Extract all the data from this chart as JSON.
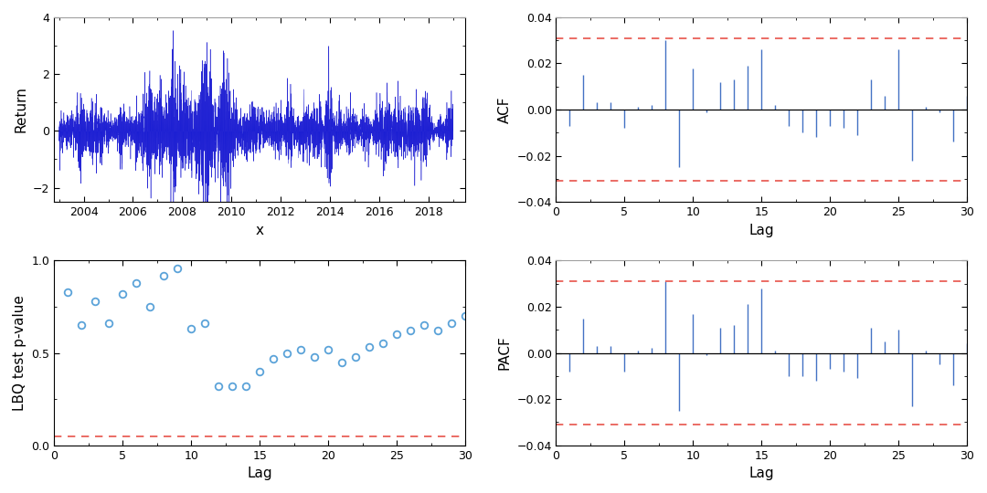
{
  "return_ylim": [
    -2.5,
    4
  ],
  "return_yticks": [
    -2,
    0,
    2,
    4
  ],
  "return_xticks": [
    2004,
    2006,
    2008,
    2010,
    2012,
    2014,
    2016,
    2018
  ],
  "return_xlabel": "x",
  "return_ylabel": "Return",
  "return_color_dark": "#0000CD",
  "return_color_light": "#6495ED",
  "acf_lags": [
    1,
    2,
    3,
    4,
    5,
    6,
    7,
    8,
    9,
    10,
    11,
    12,
    13,
    14,
    15,
    16,
    17,
    18,
    19,
    20,
    21,
    22,
    23,
    24,
    25,
    26,
    27,
    28,
    29,
    30
  ],
  "acf_values": [
    -0.007,
    0.015,
    0.003,
    0.003,
    -0.008,
    0.001,
    0.002,
    0.03,
    -0.025,
    0.018,
    -0.001,
    0.012,
    0.013,
    0.019,
    0.026,
    0.002,
    -0.007,
    -0.01,
    -0.012,
    -0.007,
    -0.008,
    -0.011,
    0.013,
    0.006,
    0.026,
    -0.022,
    0.001,
    -0.001,
    -0.014,
    0.006
  ],
  "acf_ylim": [
    -0.04,
    0.04
  ],
  "acf_yticks": [
    -0.04,
    -0.02,
    0,
    0.02,
    0.04
  ],
  "acf_conf": 0.031,
  "acf_conf_neg": -0.031,
  "acf_xlabel": "Lag",
  "acf_ylabel": "ACF",
  "acf_xlim": [
    0,
    30
  ],
  "pacf_lags": [
    1,
    2,
    3,
    4,
    5,
    6,
    7,
    8,
    9,
    10,
    11,
    12,
    13,
    14,
    15,
    16,
    17,
    18,
    19,
    20,
    21,
    22,
    23,
    24,
    25,
    26,
    27,
    28,
    29,
    30
  ],
  "pacf_values": [
    -0.008,
    0.015,
    0.003,
    0.003,
    -0.008,
    0.001,
    0.002,
    0.031,
    -0.025,
    0.017,
    -0.001,
    0.011,
    0.012,
    0.021,
    0.028,
    0.001,
    -0.01,
    -0.01,
    -0.012,
    -0.007,
    -0.008,
    -0.011,
    0.011,
    0.005,
    0.01,
    -0.023,
    0.001,
    -0.005,
    -0.014,
    0.004
  ],
  "pacf_ylim": [
    -0.04,
    0.04
  ],
  "pacf_yticks": [
    -0.04,
    -0.02,
    0,
    0.02,
    0.04
  ],
  "pacf_conf": 0.031,
  "pacf_conf_neg": -0.031,
  "pacf_xlabel": "Lag",
  "pacf_ylabel": "PACF",
  "pacf_xlim": [
    0,
    30
  ],
  "lbq_lags": [
    1,
    2,
    3,
    4,
    5,
    6,
    7,
    8,
    9,
    10,
    11,
    12,
    13,
    14,
    15,
    16,
    17,
    18,
    19,
    20,
    21,
    22,
    23,
    24,
    25,
    26,
    27,
    28,
    29,
    30
  ],
  "lbq_values": [
    0.83,
    0.65,
    0.78,
    0.66,
    0.82,
    0.88,
    0.75,
    0.92,
    0.96,
    0.63,
    0.66,
    0.32,
    0.32,
    0.32,
    0.4,
    0.47,
    0.5,
    0.52,
    0.48,
    0.52,
    0.45,
    0.48,
    0.53,
    0.55,
    0.6,
    0.62,
    0.65,
    0.62,
    0.66,
    0.7
  ],
  "lbq_ylim": [
    0,
    1
  ],
  "lbq_yticks": [
    0,
    0.5,
    1
  ],
  "lbq_conf": 0.05,
  "lbq_xlabel": "Lag",
  "lbq_ylabel": "LBQ test p-value",
  "lbq_xlim": [
    0,
    30
  ],
  "conf_color": "#E8534A",
  "stem_color": "#4472C4",
  "zero_line_color": "#000000",
  "marker_color": "#5BA3D9",
  "bg_color": "#FFFFFF",
  "spine_color": "#000000",
  "top_spine_color": "#A0A0A0",
  "tick_color": "#000000",
  "font_size": 10,
  "label_font_size": 11,
  "tick_font_size": 9,
  "n_samples": 4000,
  "seed": 42
}
